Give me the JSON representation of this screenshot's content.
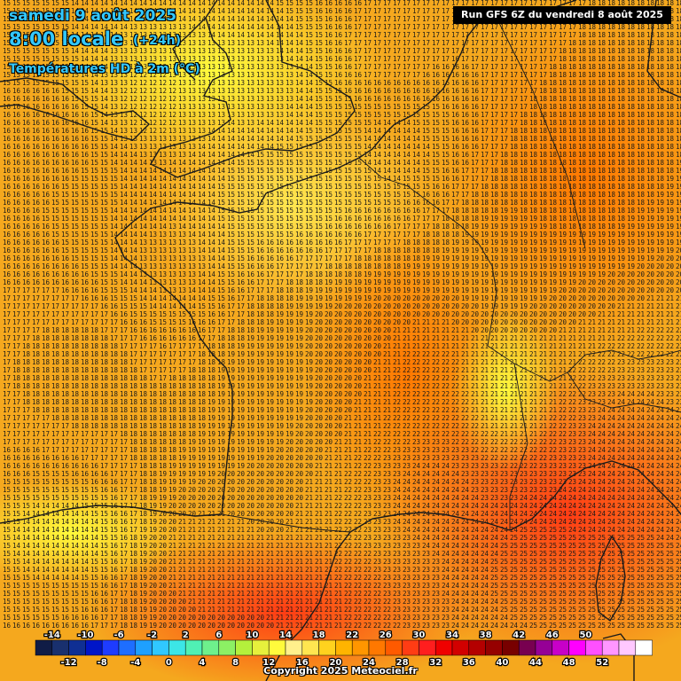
{
  "header": {
    "date": "samedi 9 août 2025",
    "hour": "8:00 locale",
    "lead": "(+24h)",
    "parameter": "Températures HD à 2m (°C)",
    "run": "Run GFS 6Z du vendredi 8 août 2025"
  },
  "copyright": "Copyright 2025 Meteociel.fr",
  "legend": {
    "unit": "°C",
    "top_labels": [
      "-14",
      "-10",
      "-6",
      "-2",
      "2",
      "6",
      "10",
      "14",
      "18",
      "22",
      "26",
      "30",
      "34",
      "38",
      "42",
      "46",
      "50"
    ],
    "bottom_labels": [
      "-12",
      "-8",
      "-4",
      "0",
      "4",
      "8",
      "12",
      "16",
      "20",
      "24",
      "28",
      "32",
      "36",
      "40",
      "44",
      "48",
      "52"
    ],
    "colors": [
      "#101c46",
      "#19306e",
      "#0f2f93",
      "#0015c8",
      "#1e3cff",
      "#1e6eff",
      "#1ea0ff",
      "#30c8ff",
      "#3ce6e6",
      "#50f0b4",
      "#6ef08c",
      "#8cf064",
      "#b4f03c",
      "#e6f03c",
      "#fffa3c",
      "#fff08c",
      "#ffe650",
      "#ffd21e",
      "#ffb400",
      "#ff9600",
      "#ff7800",
      "#ff5a00",
      "#ff3c14",
      "#ff1e1e",
      "#f00000",
      "#d20000",
      "#b40000",
      "#960000",
      "#780000",
      "#780050",
      "#960096",
      "#c800c8",
      "#ff00ff",
      "#ff50ff",
      "#ff96ff",
      "#ffc8ff"
    ],
    "last_color": "#ffffff"
  },
  "colors": {
    "sea": "#f0a020",
    "coast": "#1a1a1a",
    "number_text": "#1a1a1a"
  },
  "temperature_grid": {
    "note_rows_top_to_bottom": "coarse field sampled per region",
    "zones": [
      {
        "region": "north-west-atlantic",
        "value": "16"
      },
      {
        "region": "channel",
        "value": "12"
      },
      {
        "region": "england",
        "value": "13"
      },
      {
        "region": "north-sea",
        "value": "17"
      },
      {
        "region": "brittany",
        "value": "13"
      },
      {
        "region": "paris-basin",
        "value": "15"
      },
      {
        "region": "belgium",
        "value": "14"
      },
      {
        "region": "germany",
        "value": "18"
      },
      {
        "region": "alsace",
        "value": "19"
      },
      {
        "region": "biscay",
        "value": "18"
      },
      {
        "region": "aquitaine",
        "value": "19"
      },
      {
        "region": "massif-central",
        "value": "20"
      },
      {
        "region": "rhone-valley",
        "value": "22"
      },
      {
        "region": "alps",
        "value": "21"
      },
      {
        "region": "provence",
        "value": "24"
      },
      {
        "region": "mediterranean",
        "value": "25"
      },
      {
        "region": "po-valley",
        "value": "24"
      },
      {
        "region": "iberia-north",
        "value": "21"
      },
      {
        "region": "cantabria",
        "value": "14"
      },
      {
        "region": "corsica",
        "value": "25"
      }
    ]
  }
}
